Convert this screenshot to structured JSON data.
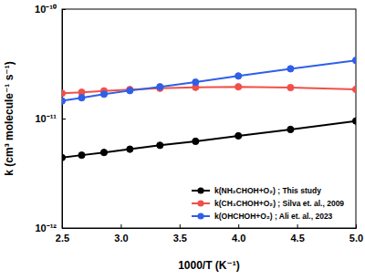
{
  "chart_data": {
    "type": "line",
    "x_label": "1000/T (K⁻¹)",
    "y_label": "k (cm³ molecule⁻¹ s⁻¹)",
    "x": [
      2.5,
      2.667,
      2.857,
      3.077,
      3.333,
      3.636,
      4.0,
      4.444,
      5.0
    ],
    "series": [
      {
        "name": "k(NH₂CHOH+O₂) ; This study",
        "color": "#000000",
        "marker": "circle",
        "line_style": "solid",
        "values": [
          4.4e-12,
          4.63e-12,
          4.9e-12,
          5.25e-12,
          5.7e-12,
          6.2e-12,
          6.95e-12,
          7.95e-12,
          9.5e-12
        ]
      },
      {
        "name": "k(CH₃CHOH+O₂) ; Silva et. al., 2009",
        "color": "#f0504a",
        "marker": "circle",
        "line_style": "solid",
        "values": [
          1.7e-11,
          1.74e-11,
          1.79e-11,
          1.84e-11,
          1.89e-11,
          1.93e-11,
          1.95e-11,
          1.92e-11,
          1.85e-11
        ]
      },
      {
        "name": "k(OHCHOH+O₂) ; Ali et. al., 2023",
        "color": "#2f5fe8",
        "marker": "circle",
        "line_style": "solid",
        "values": [
          1.45e-11,
          1.55e-11,
          1.67e-11,
          1.8e-11,
          1.95e-11,
          2.15e-11,
          2.45e-11,
          2.85e-11,
          3.4e-11
        ]
      }
    ],
    "xlim": [
      2.5,
      5.0
    ],
    "xticks": [
      2.5,
      {
        "value": 3,
        "label": "3.0"
      },
      3.5,
      {
        "value": 4,
        "label": "4.0"
      },
      4.5,
      {
        "value": 5,
        "label": "5.0"
      }
    ],
    "ylim": [
      1e-12,
      1e-10
    ],
    "yticks": [
      {
        "value": 1e-12,
        "label": "10⁻¹²"
      },
      {
        "value": 1e-11,
        "label": "10⁻¹¹"
      },
      {
        "value": 1e-10,
        "label": "10⁻¹⁰"
      }
    ],
    "log": "y",
    "grid": false,
    "legend": "lower right"
  }
}
